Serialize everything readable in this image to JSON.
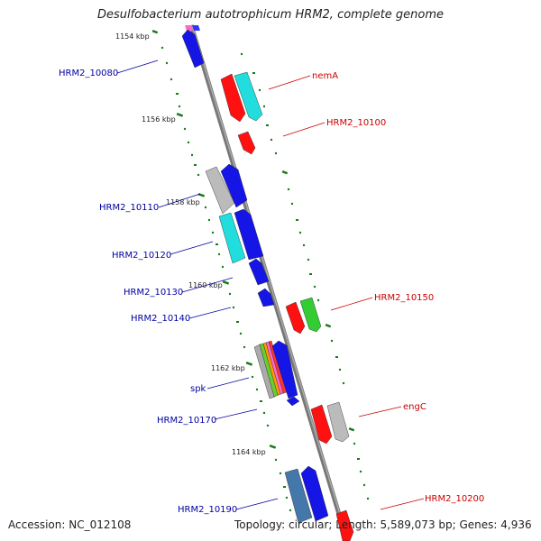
{
  "title": "Desulfobacterium autotrophicum HRM2, complete genome",
  "accession": "Accession: NC_012108",
  "summary": "Topology: circular; Length: 5,589,073 bp; Genes: 4,936",
  "ticks": [
    {
      "label": "1154 kbp"
    },
    {
      "label": "1156 kbp"
    },
    {
      "label": "1158 kbp"
    },
    {
      "label": "1160 kbp"
    },
    {
      "label": "1162 kbp"
    },
    {
      "label": "1164 kbp"
    }
  ],
  "left_genes": [
    "HRM2_10080",
    "HRM2_10110",
    "HRM2_10120",
    "HRM2_10130",
    "HRM2_10140",
    "spk",
    "HRM2_10170",
    "HRM2_10190"
  ],
  "right_genes": [
    "nemA",
    "HRM2_10100",
    "HRM2_10150",
    "engC",
    "HRM2_10200"
  ],
  "colors": {
    "forward_label": "#0000a0",
    "reverse_label": "#cc0000",
    "backbone": "#888888",
    "tick": "#1a7a1a"
  }
}
